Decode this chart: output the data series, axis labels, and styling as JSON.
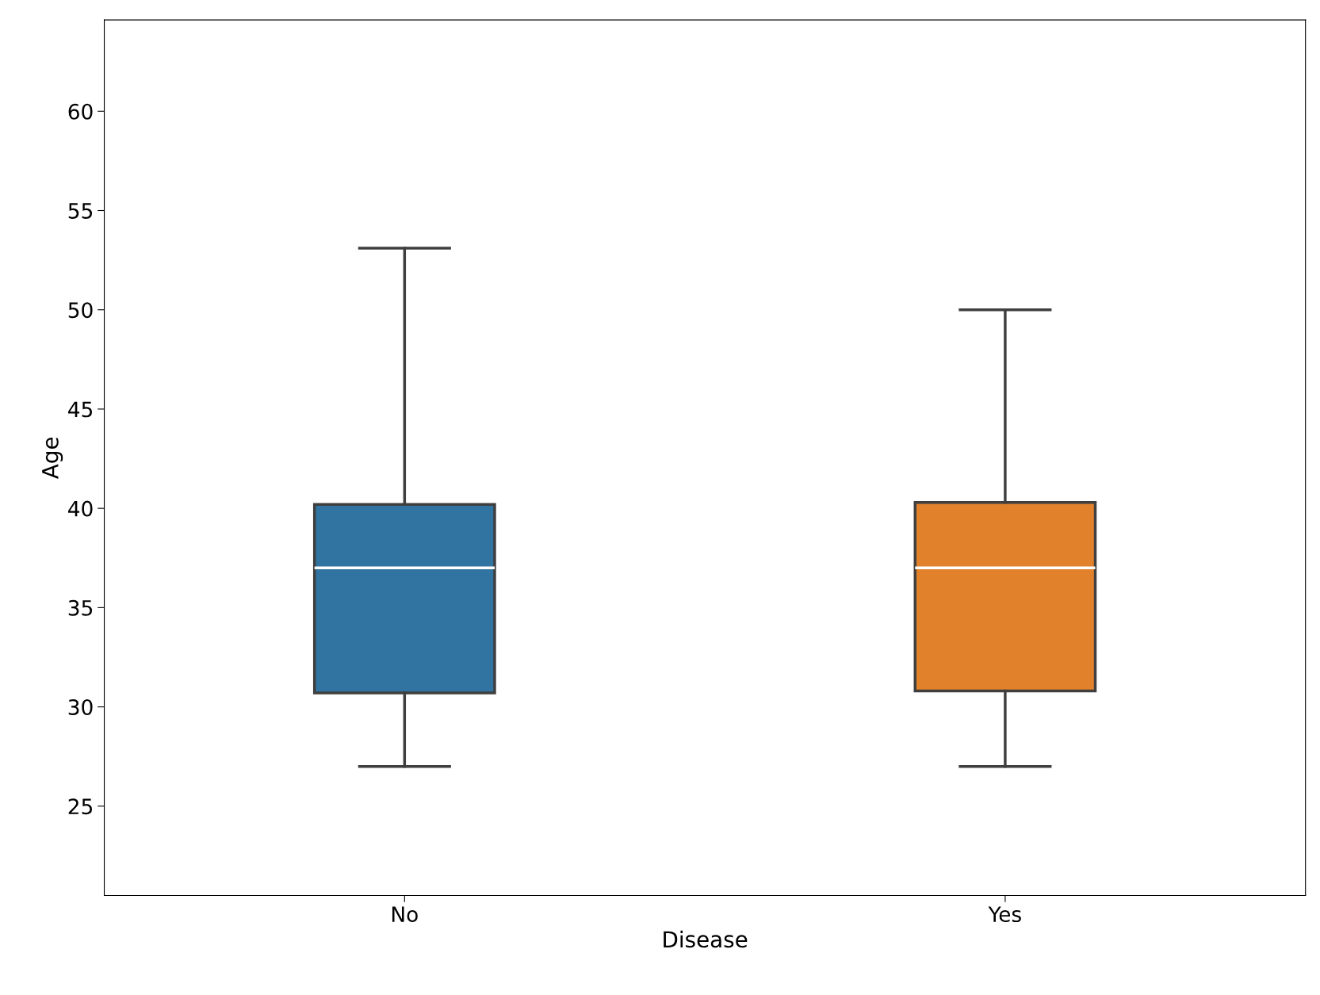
{
  "chart_data": {
    "type": "box",
    "xlabel": "Disease",
    "ylabel": "Age",
    "categories": [
      "No",
      "Yes"
    ],
    "ylim": [
      20.5,
      64.6
    ],
    "yticks": [
      25,
      30,
      35,
      40,
      45,
      50,
      55,
      60
    ],
    "colors": [
      "#3274a1",
      "#e1812c"
    ],
    "boxes": [
      {
        "low": 27,
        "q1": 30.7,
        "median": 37,
        "q3": 40.2,
        "high": 53.1
      },
      {
        "low": 27,
        "q1": 30.8,
        "median": 37,
        "q3": 40.3,
        "high": 50
      }
    ]
  }
}
